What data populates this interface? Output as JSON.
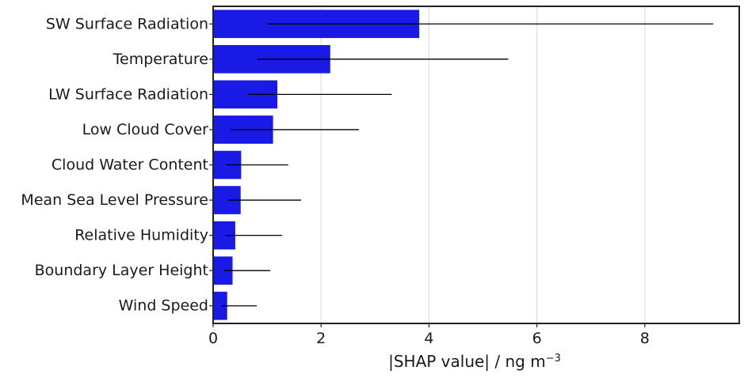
{
  "chart_data": {
    "type": "bar",
    "orientation": "horizontal",
    "categories": [
      "SW Surface Radiation",
      "Temperature",
      "LW Surface Radiation",
      "Low Cloud Cover",
      "Cloud Water Content",
      "Mean Sea Level Pressure",
      "Relative Humidity",
      "Boundary Layer Height",
      "Wind Speed"
    ],
    "values": [
      3.82,
      2.17,
      1.19,
      1.11,
      0.52,
      0.51,
      0.41,
      0.36,
      0.26
    ],
    "error_low": [
      1.0,
      0.82,
      0.65,
      0.33,
      0.24,
      0.28,
      0.22,
      0.2,
      0.15
    ],
    "error_high": [
      9.27,
      5.47,
      3.31,
      2.7,
      1.39,
      1.63,
      1.28,
      1.06,
      0.81
    ],
    "xlabel": "|SHAP value| / ng m",
    "xlabel_superscript": "−3",
    "xticks": [
      "0",
      "2",
      "4",
      "6",
      "8"
    ],
    "xlim": [
      0,
      9.75
    ],
    "grid": "x",
    "colors": {
      "bar": "#1a1ae6",
      "error_line": "#000000",
      "grid": "#d9d9d9",
      "axes": "#222222"
    }
  }
}
